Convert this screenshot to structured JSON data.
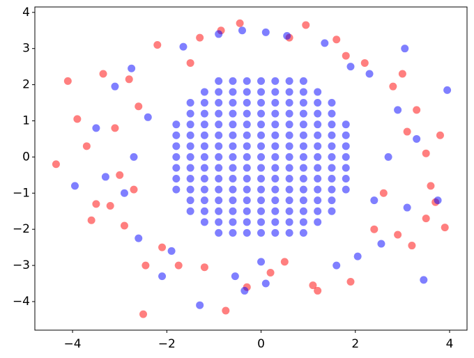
{
  "chart_data": {
    "type": "scatter",
    "xlim": [
      -4.8,
      4.37
    ],
    "ylim": [
      -4.79,
      4.15
    ],
    "xticks": [
      {
        "value": -4,
        "label": "−4"
      },
      {
        "value": -2,
        "label": "−2"
      },
      0,
      2,
      4
    ],
    "yticks": [
      {
        "value": -4,
        "label": "−4"
      },
      {
        "value": -3,
        "label": "−3"
      },
      {
        "value": -2,
        "label": "−2"
      },
      {
        "value": -1,
        "label": "−1"
      },
      0,
      1,
      2,
      3,
      4
    ],
    "series": [
      {
        "color": "#ff0000",
        "x": [
          -4.35,
          -4.1,
          -3.9,
          -3.7,
          -3.6,
          -3.5,
          -3.35,
          -3.2,
          -3.1,
          -2.9,
          -2.8,
          -2.7,
          -2.5,
          -2.45,
          -2.2,
          -2.1,
          -1.75,
          -1.3,
          -1.2,
          -0.85,
          -0.75,
          -0.45,
          -0.3,
          0.2,
          0.6,
          0.95,
          1.1,
          1.2,
          1.6,
          1.9,
          2.2,
          2.4,
          2.8,
          2.9,
          3.0,
          3.2,
          3.3,
          3.5,
          3.6,
          3.7,
          3.8,
          3.9,
          3.5,
          2.6,
          -2.6,
          1.8,
          -1.5,
          0.5,
          -3.0,
          3.1
        ],
        "values": [
          -0.2,
          2.1,
          1.05,
          0.3,
          -1.75,
          -1.3,
          2.3,
          -1.35,
          0.8,
          -1.9,
          2.15,
          -0.9,
          -4.35,
          -3.0,
          3.1,
          -2.5,
          -3.0,
          3.3,
          -3.05,
          3.5,
          -4.25,
          3.7,
          -3.6,
          -3.2,
          3.3,
          3.65,
          -3.55,
          -3.7,
          3.25,
          -3.45,
          2.6,
          -2.0,
          1.95,
          -2.15,
          2.3,
          -2.45,
          1.3,
          0.1,
          -0.8,
          -1.25,
          0.6,
          -1.95,
          -1.7,
          -1.0,
          1.4,
          2.8,
          2.6,
          -2.9,
          -0.5,
          0.7
        ]
      },
      {
        "color": "#0000ff",
        "x": [
          -3.95,
          -3.5,
          -3.3,
          -3.1,
          -2.9,
          -2.75,
          -2.6,
          -2.1,
          -1.65,
          -1.3,
          -0.9,
          -0.55,
          -0.4,
          -0.35,
          0.1,
          0.1,
          0.55,
          1.35,
          1.6,
          2.05,
          2.3,
          2.55,
          2.9,
          3.05,
          3.1,
          3.3,
          3.45,
          3.75,
          3.95,
          2.7,
          -2.7,
          -2.4,
          2.4,
          0.0,
          -1.9,
          1.9,
          -0.9,
          -0.6,
          -0.3,
          0,
          0.3,
          0.6,
          0.9,
          -1.2,
          -0.9,
          -0.6,
          -0.3,
          0,
          0.3,
          0.6,
          0.9,
          1.2,
          -1.5,
          -1.2,
          -0.9,
          -0.6,
          -0.3,
          0,
          0.3,
          0.6,
          0.9,
          1.2,
          1.5,
          -1.5,
          -1.2,
          -0.9,
          -0.6,
          -0.3,
          0,
          0.3,
          0.6,
          0.9,
          1.2,
          1.5,
          -1.8,
          -1.5,
          -1.2,
          -0.9,
          -0.6,
          -0.3,
          0,
          0.3,
          0.6,
          0.9,
          1.2,
          1.5,
          1.8,
          -1.8,
          -1.5,
          -1.2,
          -0.9,
          -0.6,
          -0.3,
          0,
          0.3,
          0.6,
          0.9,
          1.2,
          1.5,
          1.8,
          -1.8,
          -1.5,
          -1.2,
          -0.9,
          -0.6,
          -0.3,
          0,
          0.3,
          0.6,
          0.9,
          1.2,
          1.5,
          1.8,
          -1.8,
          -1.5,
          -1.2,
          -0.9,
          -0.6,
          -0.3,
          0,
          0.3,
          0.6,
          0.9,
          1.2,
          1.5,
          1.8,
          -1.8,
          -1.5,
          -1.2,
          -0.9,
          -0.6,
          -0.3,
          0,
          0.3,
          0.6,
          0.9,
          1.2,
          1.5,
          1.8,
          -1.8,
          -1.5,
          -1.2,
          -0.9,
          -0.6,
          -0.3,
          0,
          0.3,
          0.6,
          0.9,
          1.2,
          1.5,
          1.8,
          -1.8,
          -1.5,
          -1.2,
          -0.9,
          -0.6,
          -0.3,
          0,
          0.3,
          0.6,
          0.9,
          1.2,
          1.5,
          1.8,
          -1.5,
          -1.2,
          -0.9,
          -0.6,
          -0.3,
          0,
          0.3,
          0.6,
          0.9,
          1.2,
          1.5,
          -1.5,
          -1.2,
          -0.9,
          -0.6,
          -0.3,
          0,
          0.3,
          0.6,
          0.9,
          1.2,
          1.5,
          -1.2,
          -0.9,
          -0.6,
          -0.3,
          0,
          0.3,
          0.6,
          0.9,
          1.2,
          -0.9,
          -0.6,
          -0.3,
          0,
          0.3,
          0.6,
          0.9
        ],
        "values": [
          -0.8,
          0.8,
          -0.55,
          1.95,
          -1.0,
          2.45,
          -2.25,
          -3.3,
          3.05,
          -4.1,
          3.4,
          -3.3,
          3.5,
          -3.7,
          -3.5,
          3.45,
          3.35,
          3.15,
          -3.0,
          -2.75,
          2.3,
          -2.4,
          1.3,
          3.0,
          -1.4,
          0.5,
          -3.4,
          -1.2,
          1.85,
          0.0,
          0.0,
          1.1,
          -1.2,
          -2.9,
          -2.6,
          2.5,
          2.1,
          2.1,
          2.1,
          2.1,
          2.1,
          2.1,
          2.1,
          1.8,
          1.8,
          1.8,
          1.8,
          1.8,
          1.8,
          1.8,
          1.8,
          1.8,
          1.5,
          1.5,
          1.5,
          1.5,
          1.5,
          1.5,
          1.5,
          1.5,
          1.5,
          1.5,
          1.5,
          1.2,
          1.2,
          1.2,
          1.2,
          1.2,
          1.2,
          1.2,
          1.2,
          1.2,
          1.2,
          1.2,
          0.9,
          0.9,
          0.9,
          0.9,
          0.9,
          0.9,
          0.9,
          0.9,
          0.9,
          0.9,
          0.9,
          0.9,
          0.9,
          0.6,
          0.6,
          0.6,
          0.6,
          0.6,
          0.6,
          0.6,
          0.6,
          0.6,
          0.6,
          0.6,
          0.6,
          0.6,
          0.3,
          0.3,
          0.3,
          0.3,
          0.3,
          0.3,
          0.3,
          0.3,
          0.3,
          0.3,
          0.3,
          0.3,
          0.3,
          0,
          0,
          0,
          0,
          0,
          0,
          0,
          0,
          0,
          0,
          0,
          0,
          0,
          -0.3,
          -0.3,
          -0.3,
          -0.3,
          -0.3,
          -0.3,
          -0.3,
          -0.3,
          -0.3,
          -0.3,
          -0.3,
          -0.3,
          -0.3,
          -0.6,
          -0.6,
          -0.6,
          -0.6,
          -0.6,
          -0.6,
          -0.6,
          -0.6,
          -0.6,
          -0.6,
          -0.6,
          -0.6,
          -0.6,
          -0.9,
          -0.9,
          -0.9,
          -0.9,
          -0.9,
          -0.9,
          -0.9,
          -0.9,
          -0.9,
          -0.9,
          -0.9,
          -0.9,
          -0.9,
          -1.2,
          -1.2,
          -1.2,
          -1.2,
          -1.2,
          -1.2,
          -1.2,
          -1.2,
          -1.2,
          -1.2,
          -1.2,
          -1.5,
          -1.5,
          -1.5,
          -1.5,
          -1.5,
          -1.5,
          -1.5,
          -1.5,
          -1.5,
          -1.5,
          -1.5,
          -1.8,
          -1.8,
          -1.8,
          -1.8,
          -1.8,
          -1.8,
          -1.8,
          -1.8,
          -1.8,
          -2.1,
          -2.1,
          -2.1,
          -2.1,
          -2.1,
          -2.1,
          -2.1
        ]
      }
    ]
  }
}
